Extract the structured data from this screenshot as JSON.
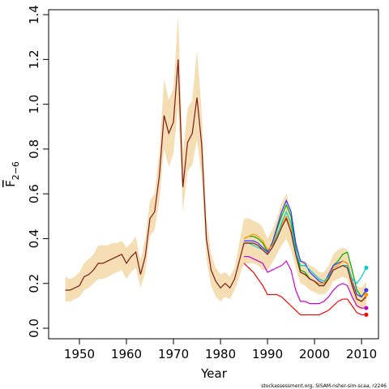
{
  "chart_data": {
    "type": "line",
    "xlabel": "Year",
    "ylabel": "F",
    "ylabel_sub": "2−6",
    "footer": "stockassessment.org, SISAM-nsher-sim-scaa, r2246",
    "x": [
      1947,
      1948,
      1949,
      1950,
      1951,
      1952,
      1953,
      1954,
      1955,
      1956,
      1957,
      1958,
      1959,
      1960,
      1961,
      1962,
      1963,
      1964,
      1965,
      1966,
      1967,
      1968,
      1969,
      1970,
      1971,
      1972,
      1973,
      1974,
      1975,
      1976,
      1977,
      1978,
      1979,
      1980,
      1981,
      1982,
      1983,
      1984,
      1985,
      1986,
      1987,
      1988,
      1989,
      1990,
      1991,
      1992,
      1993,
      1994,
      1995,
      1996,
      1997,
      1998,
      1999,
      2000,
      2001,
      2002,
      2003,
      2004,
      2005,
      2006,
      2007,
      2008,
      2009,
      2010,
      2011
    ],
    "band": {
      "color": "#f5deb3",
      "lower": [
        0.12,
        0.12,
        0.13,
        0.14,
        0.17,
        0.18,
        0.2,
        0.22,
        0.22,
        0.23,
        0.24,
        0.25,
        0.26,
        0.22,
        0.25,
        0.27,
        0.18,
        0.25,
        0.41,
        0.44,
        0.57,
        0.8,
        0.72,
        0.78,
        1.0,
        0.52,
        0.7,
        0.73,
        0.84,
        0.67,
        0.31,
        0.19,
        0.14,
        0.12,
        0.14,
        0.13,
        0.17,
        0.23,
        0.29,
        0.29,
        0.29,
        0.28,
        0.26,
        0.26,
        0.29,
        0.33,
        0.37,
        0.4,
        0.35,
        0.27,
        0.2,
        0.19,
        0.17,
        0.16,
        0.15,
        0.15,
        0.17,
        0.21,
        0.22,
        0.23,
        0.22,
        0.14,
        0.09,
        0.08,
        0.1
      ],
      "upper": [
        0.23,
        0.22,
        0.23,
        0.25,
        0.29,
        0.31,
        0.33,
        0.37,
        0.37,
        0.37,
        0.38,
        0.38,
        0.39,
        0.36,
        0.38,
        0.41,
        0.3,
        0.4,
        0.57,
        0.6,
        0.79,
        1.11,
        1.02,
        1.07,
        1.4,
        0.78,
        0.98,
        1.02,
        1.24,
        0.97,
        0.5,
        0.33,
        0.27,
        0.24,
        0.25,
        0.23,
        0.27,
        0.38,
        0.49,
        0.49,
        0.48,
        0.47,
        0.45,
        0.4,
        0.44,
        0.49,
        0.56,
        0.6,
        0.53,
        0.4,
        0.31,
        0.3,
        0.28,
        0.27,
        0.25,
        0.25,
        0.28,
        0.33,
        0.35,
        0.36,
        0.35,
        0.26,
        0.19,
        0.18,
        0.21
      ]
    },
    "series": [
      {
        "color": "#ff0000",
        "values": [
          null,
          null,
          null,
          null,
          null,
          null,
          null,
          null,
          null,
          null,
          null,
          null,
          null,
          null,
          null,
          null,
          null,
          null,
          null,
          null,
          null,
          null,
          null,
          null,
          null,
          null,
          null,
          null,
          null,
          null,
          null,
          null,
          null,
          null,
          null,
          null,
          null,
          null,
          0.29,
          0.27,
          0.25,
          0.22,
          0.19,
          0.15,
          0.15,
          0.15,
          0.14,
          0.12,
          0.1,
          0.08,
          0.06,
          0.06,
          0.06,
          0.06,
          0.06,
          0.07,
          0.08,
          0.1,
          0.12,
          0.13,
          0.13,
          0.1,
          0.07,
          0.06,
          0.06
        ]
      },
      {
        "color": "#cc00cc",
        "values": [
          null,
          null,
          null,
          null,
          null,
          null,
          null,
          null,
          null,
          null,
          null,
          null,
          null,
          null,
          null,
          null,
          null,
          null,
          null,
          null,
          null,
          null,
          null,
          null,
          null,
          null,
          null,
          null,
          null,
          null,
          null,
          null,
          null,
          null,
          null,
          null,
          null,
          null,
          0.32,
          0.32,
          0.31,
          0.3,
          0.29,
          0.25,
          0.26,
          0.27,
          0.28,
          0.3,
          0.26,
          0.17,
          0.12,
          0.12,
          0.11,
          0.11,
          0.11,
          0.12,
          0.14,
          0.17,
          0.19,
          0.2,
          0.19,
          0.14,
          0.1,
          0.09,
          0.09
        ]
      },
      {
        "color": "#00aa00",
        "values": [
          null,
          null,
          null,
          null,
          null,
          null,
          null,
          null,
          null,
          null,
          null,
          null,
          null,
          null,
          null,
          null,
          null,
          null,
          null,
          null,
          null,
          null,
          null,
          null,
          null,
          null,
          null,
          null,
          null,
          null,
          null,
          null,
          null,
          null,
          null,
          null,
          null,
          null,
          0.4,
          0.41,
          0.41,
          0.4,
          0.38,
          0.34,
          0.38,
          0.44,
          0.5,
          0.55,
          0.5,
          0.36,
          0.26,
          0.25,
          0.22,
          0.21,
          0.19,
          0.19,
          0.23,
          0.28,
          0.3,
          0.33,
          0.34,
          0.26,
          0.17,
          0.14,
          0.17
        ]
      },
      {
        "color": "#3333ff",
        "values": [
          null,
          null,
          null,
          null,
          null,
          null,
          null,
          null,
          null,
          null,
          null,
          null,
          null,
          null,
          null,
          null,
          null,
          null,
          null,
          null,
          null,
          null,
          null,
          null,
          null,
          null,
          null,
          null,
          null,
          null,
          null,
          null,
          null,
          null,
          null,
          null,
          null,
          null,
          0.39,
          0.39,
          0.39,
          0.38,
          0.36,
          0.34,
          0.38,
          0.45,
          0.52,
          0.57,
          0.52,
          0.38,
          0.3,
          0.29,
          0.25,
          0.23,
          0.21,
          0.2,
          0.24,
          0.28,
          0.29,
          0.3,
          0.29,
          0.21,
          0.15,
          0.14,
          0.17
        ]
      },
      {
        "color": "#ff9900",
        "values": [
          null,
          null,
          null,
          null,
          null,
          null,
          null,
          null,
          null,
          null,
          null,
          null,
          null,
          null,
          null,
          null,
          null,
          null,
          null,
          null,
          null,
          null,
          null,
          null,
          null,
          null,
          null,
          null,
          null,
          null,
          null,
          null,
          null,
          null,
          null,
          null,
          null,
          null,
          0.4,
          0.41,
          0.42,
          0.41,
          0.39,
          0.35,
          0.37,
          0.42,
          0.46,
          0.5,
          0.45,
          0.33,
          0.25,
          0.24,
          0.22,
          0.21,
          0.2,
          0.2,
          0.23,
          0.27,
          0.28,
          0.3,
          0.29,
          0.2,
          0.13,
          0.12,
          0.15
        ]
      },
      {
        "color": "#00cccc",
        "values": [
          null,
          null,
          null,
          null,
          null,
          null,
          null,
          null,
          null,
          null,
          null,
          null,
          null,
          null,
          null,
          null,
          null,
          null,
          null,
          null,
          null,
          null,
          null,
          null,
          null,
          null,
          null,
          null,
          null,
          null,
          null,
          null,
          null,
          null,
          null,
          null,
          null,
          null,
          0.38,
          0.38,
          0.37,
          0.36,
          0.35,
          0.33,
          0.36,
          0.41,
          0.47,
          0.52,
          0.47,
          0.35,
          0.28,
          0.28,
          0.26,
          0.24,
          0.22,
          0.21,
          0.23,
          0.26,
          0.27,
          0.28,
          0.28,
          0.22,
          0.2,
          0.23,
          0.27
        ]
      },
      {
        "color": "#7a1a1a",
        "values": [
          0.17,
          0.17,
          0.18,
          0.19,
          0.23,
          0.24,
          0.26,
          0.29,
          0.29,
          0.3,
          0.31,
          0.32,
          0.33,
          0.29,
          0.32,
          0.34,
          0.24,
          0.32,
          0.49,
          0.52,
          0.68,
          0.95,
          0.87,
          0.92,
          1.2,
          0.63,
          0.83,
          0.87,
          1.03,
          0.82,
          0.4,
          0.26,
          0.21,
          0.18,
          0.2,
          0.18,
          0.22,
          0.3,
          0.38,
          0.38,
          0.38,
          0.37,
          0.35,
          0.33,
          0.36,
          0.4,
          0.45,
          0.49,
          0.43,
          0.33,
          0.25,
          0.24,
          0.22,
          0.21,
          0.19,
          0.19,
          0.22,
          0.26,
          0.27,
          0.28,
          0.27,
          0.19,
          0.13,
          0.12,
          0.14
        ]
      }
    ],
    "xlim": [
      1943.45,
      2013.6
    ],
    "ylim": [
      -0.047,
      1.422
    ],
    "xticks": [
      1950,
      1960,
      1970,
      1980,
      1990,
      2000,
      2010
    ],
    "yticks": [
      {
        "value": 0,
        "label": "0.0"
      },
      0.2,
      0.4,
      0.6,
      0.8,
      {
        "value": 1,
        "label": "1.0"
      },
      1.2,
      1.4
    ]
  }
}
